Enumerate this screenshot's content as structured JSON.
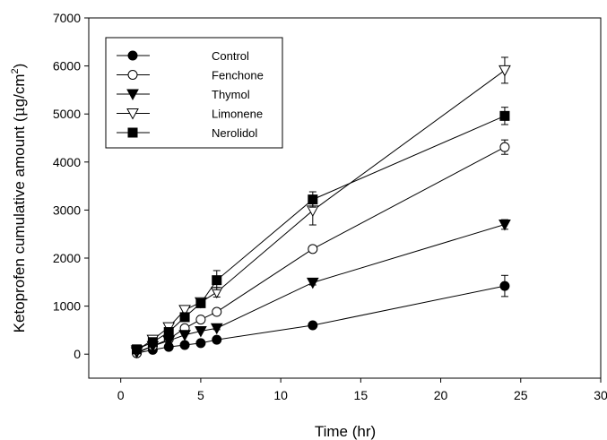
{
  "chart_data": {
    "type": "line",
    "xlabel": "Time (hr)",
    "ylabel": {
      "prefix": "Ketoprofen cumulative amount (",
      "unit_mu": "μ",
      "unit_mid": "g/cm",
      "unit_exp": "2",
      "suffix": ")"
    },
    "xlim": [
      -2,
      30
    ],
    "ylim": [
      -500,
      7000
    ],
    "xticks": [
      0,
      5,
      10,
      15,
      20,
      25,
      30
    ],
    "xtick_labels": [
      "0",
      "5",
      "10",
      "15",
      "20",
      "25",
      "30"
    ],
    "yticks": [
      0,
      1000,
      2000,
      3000,
      4000,
      5000,
      6000,
      7000
    ],
    "ytick_labels": [
      "0",
      "1000",
      "2000",
      "3000",
      "4000",
      "5000",
      "6000",
      "7000"
    ],
    "grid": false,
    "legend_position": "top-left",
    "series": [
      {
        "name": "Control",
        "marker": "circle-filled",
        "x": [
          1,
          2,
          3,
          4,
          5,
          6,
          12,
          24
        ],
        "y": [
          20,
          90,
          150,
          190,
          230,
          300,
          600,
          1420
        ],
        "error": [
          0,
          0,
          0,
          0,
          0,
          40,
          40,
          220
        ]
      },
      {
        "name": "Fenchone",
        "marker": "circle-open",
        "x": [
          1,
          2,
          3,
          4,
          5,
          6,
          12,
          24
        ],
        "y": [
          20,
          170,
          310,
          540,
          720,
          880,
          2190,
          4310
        ],
        "error": [
          0,
          0,
          0,
          0,
          0,
          40,
          40,
          150
        ]
      },
      {
        "name": "Thymol",
        "marker": "triangle-down-filled",
        "x": [
          1,
          2,
          3,
          4,
          5,
          6,
          12,
          24
        ],
        "y": [
          40,
          170,
          280,
          400,
          480,
          540,
          1490,
          2700
        ],
        "error": [
          0,
          0,
          0,
          0,
          0,
          30,
          50,
          100
        ]
      },
      {
        "name": "Limonene",
        "marker": "triangle-down-open",
        "x": [
          1,
          2,
          3,
          4,
          5,
          6,
          12,
          24
        ],
        "y": [
          80,
          300,
          560,
          920,
          1080,
          1290,
          2990,
          5910
        ],
        "error": [
          0,
          0,
          0,
          0,
          80,
          100,
          300,
          270
        ]
      },
      {
        "name": "Nerolidol",
        "marker": "square-filled",
        "x": [
          1,
          2,
          3,
          4,
          5,
          6,
          12,
          24
        ],
        "y": [
          100,
          250,
          460,
          770,
          1060,
          1540,
          3220,
          4960
        ],
        "error": [
          0,
          0,
          0,
          0,
          0,
          200,
          160,
          180
        ]
      }
    ]
  }
}
